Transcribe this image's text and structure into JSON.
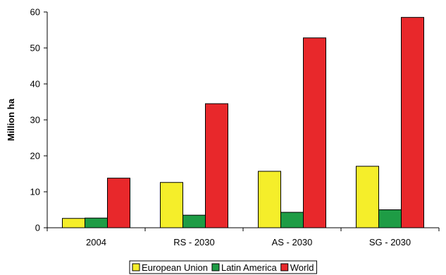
{
  "chart_data": {
    "type": "bar",
    "title": "",
    "xlabel": "",
    "ylabel": "Million ha",
    "ylim": [
      0,
      60
    ],
    "yticks": [
      0,
      10,
      20,
      30,
      40,
      50,
      60
    ],
    "grid": false,
    "legend_position": "bottom",
    "categories": [
      "2004",
      "RS - 2030",
      "AS - 2030",
      "SG - 2030"
    ],
    "series": [
      {
        "name": "European Union",
        "color": "#f5ee2a",
        "values": [
          2.6,
          12.6,
          15.7,
          17.1
        ]
      },
      {
        "name": "Latin America",
        "color": "#1e9c45",
        "values": [
          2.7,
          3.5,
          4.3,
          5.0
        ]
      },
      {
        "name": "World",
        "color": "#e8282b",
        "values": [
          13.8,
          34.5,
          52.8,
          58.5
        ]
      }
    ]
  }
}
